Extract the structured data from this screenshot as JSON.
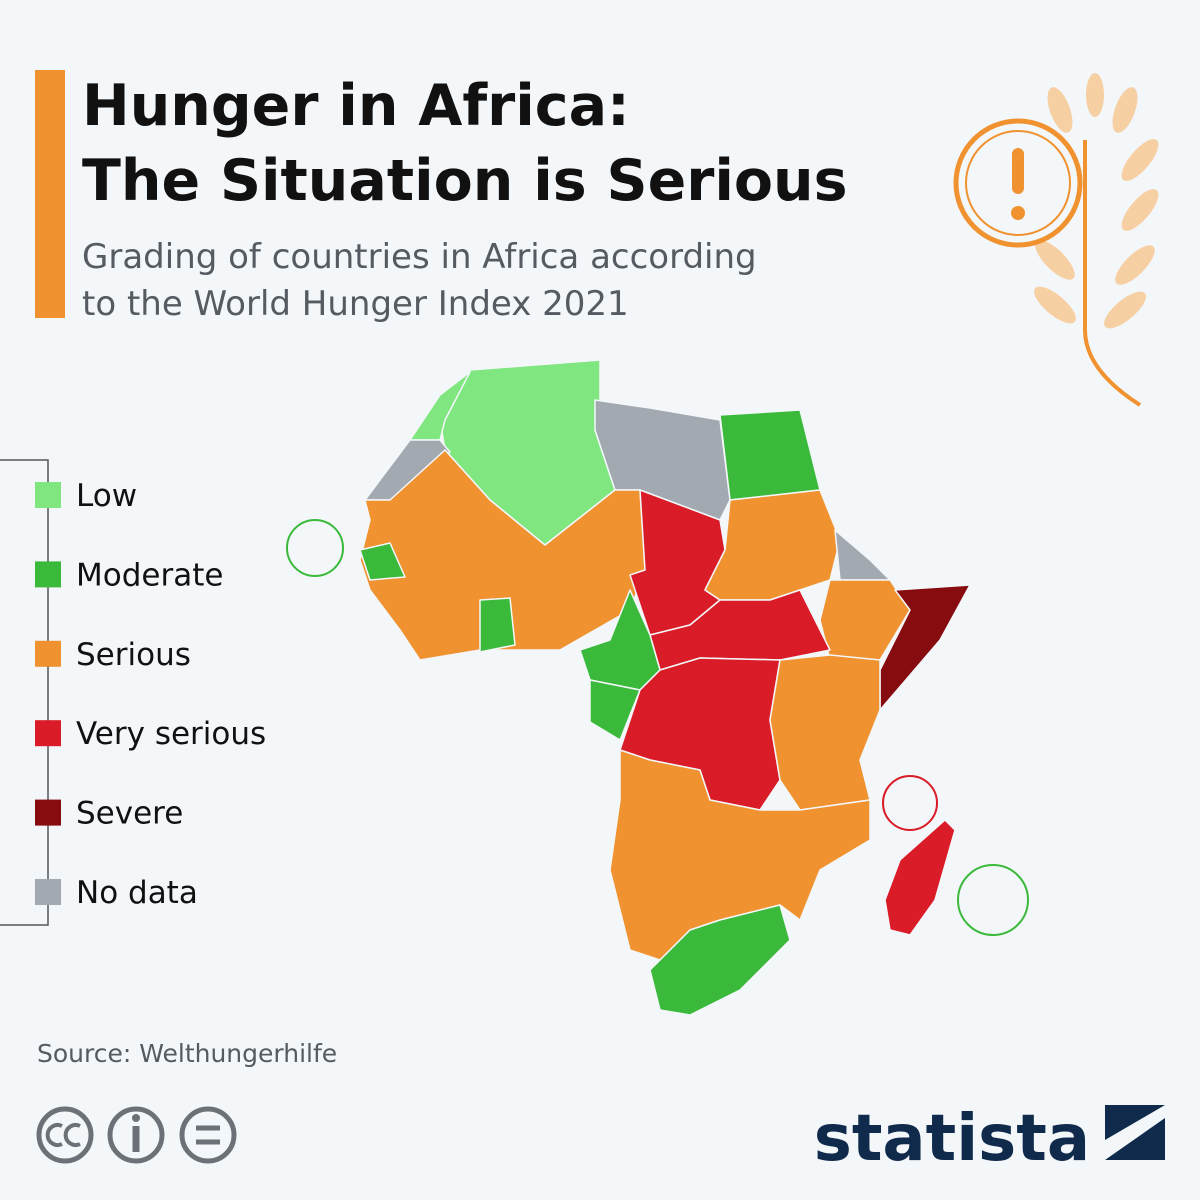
{
  "header": {
    "title": [
      "Hunger in Africa:",
      "The Situation is Serious"
    ],
    "subtitle": [
      "Grading of countries in Africa according",
      "to the World Hunger Index 2021"
    ]
  },
  "legend": {
    "items": [
      {
        "label": "Low",
        "color": "#80e67f"
      },
      {
        "label": "Moderate",
        "color": "#3bb93b"
      },
      {
        "label": "Serious",
        "color": "#ef922f"
      },
      {
        "label": "Very serious",
        "color": "#d91c27"
      },
      {
        "label": "Severe",
        "color": "#860c10"
      },
      {
        "label": "No data",
        "color": "#a2a9b1"
      }
    ]
  },
  "footer": {
    "source": "Source: Welthungerhilfe",
    "brand": "statista"
  }
}
